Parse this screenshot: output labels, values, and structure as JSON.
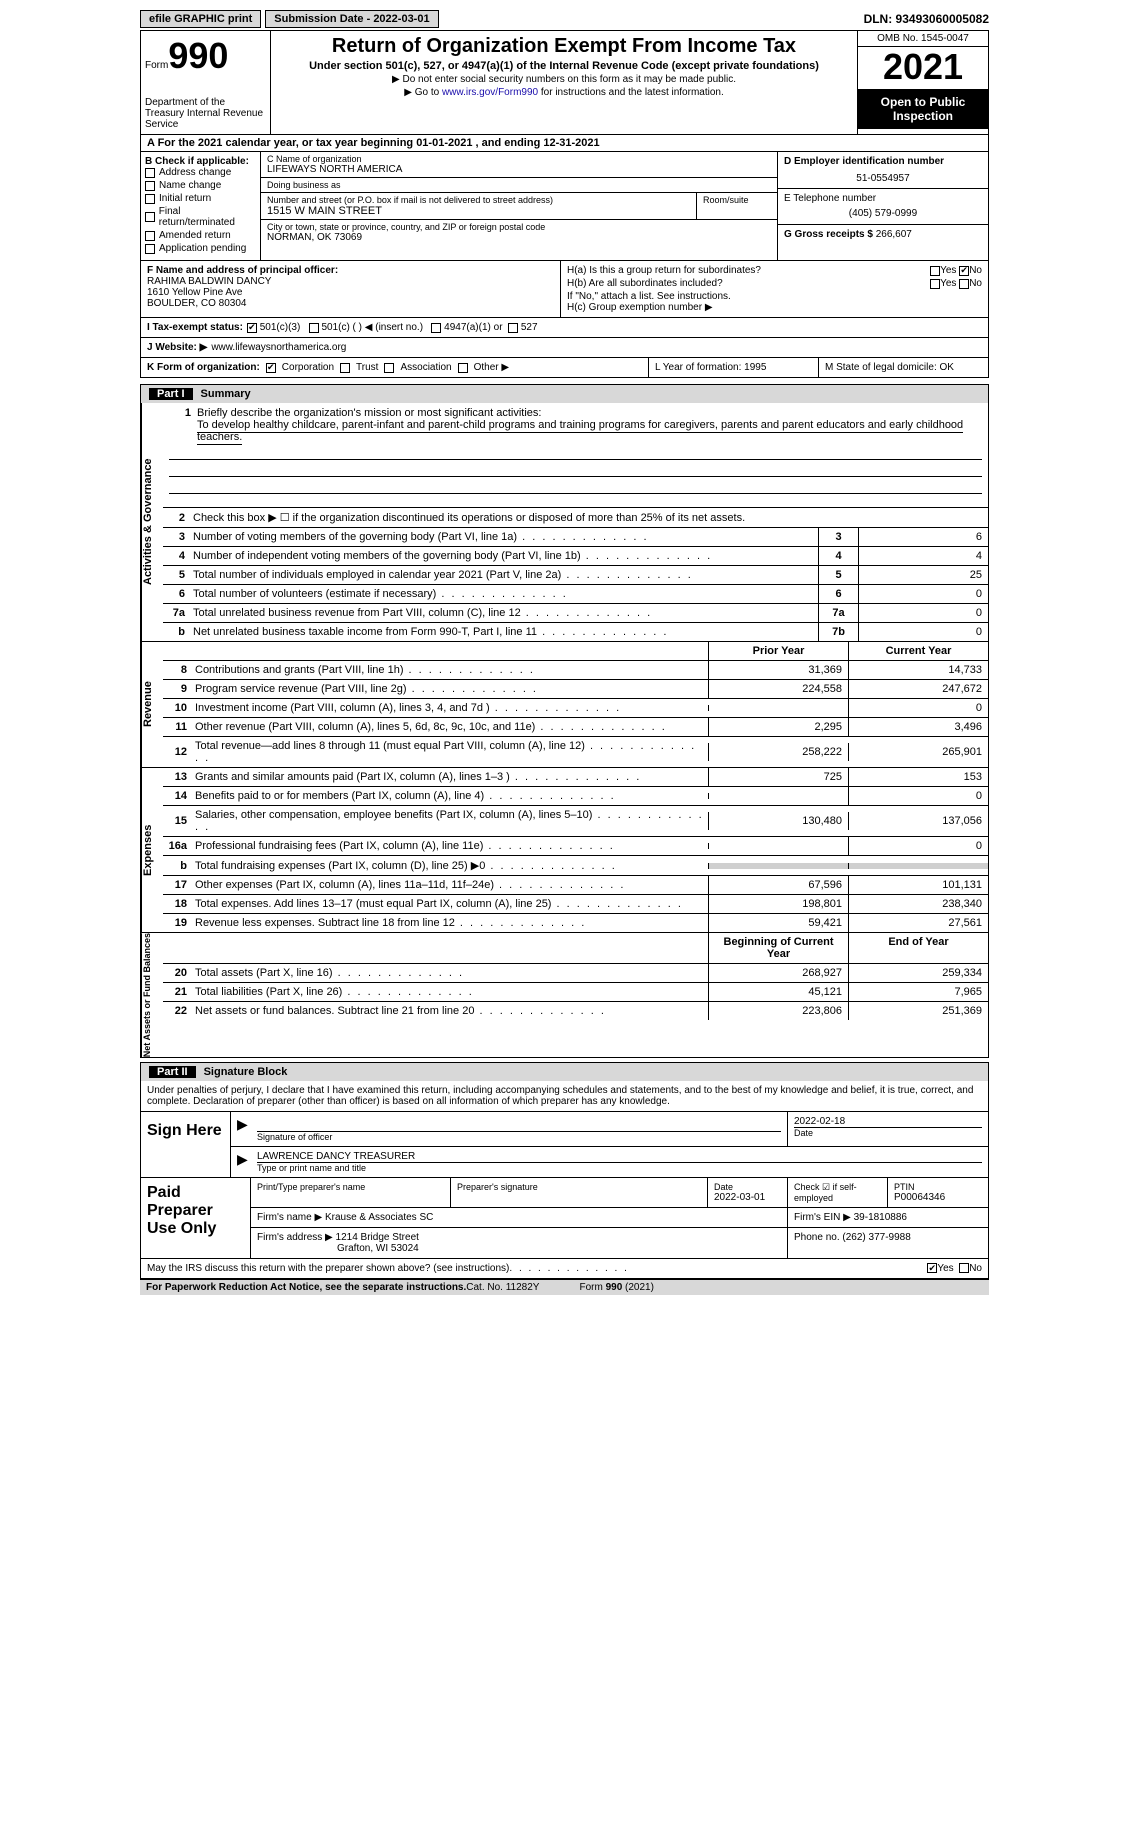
{
  "topbar": {
    "efile": "efile GRAPHIC print",
    "submission_label": "Submission Date - 2022-03-01",
    "dln": "DLN: 93493060005082"
  },
  "header": {
    "form_word": "Form",
    "form_number": "990",
    "dept": "Department of the Treasury\nInternal Revenue Service",
    "title": "Return of Organization Exempt From Income Tax",
    "subtitle": "Under section 501(c), 527, or 4947(a)(1) of the Internal Revenue Code (except private foundations)",
    "note1": "▶ Do not enter social security numbers on this form as it may be made public.",
    "note2_pre": "▶ Go to ",
    "note2_link": "www.irs.gov/Form990",
    "note2_post": " for instructions and the latest information.",
    "omb": "OMB No. 1545-0047",
    "year": "2021",
    "open": "Open to Public Inspection"
  },
  "row_a": "A For the 2021 calendar year, or tax year beginning 01-01-2021   , and ending 12-31-2021",
  "box_b": {
    "header": "B Check if applicable:",
    "items": [
      "Address change",
      "Name change",
      "Initial return",
      "Final return/terminated",
      "Amended return",
      "Application pending"
    ]
  },
  "box_c": {
    "label_name": "C Name of organization",
    "org": "LIFEWAYS NORTH AMERICA",
    "dba_label": "Doing business as",
    "dba": "",
    "addr_label": "Number and street (or P.O. box if mail is not delivered to street address)",
    "addr": "1515 W MAIN STREET",
    "room_label": "Room/suite",
    "room": "",
    "city_label": "City or town, state or province, country, and ZIP or foreign postal code",
    "city": "NORMAN, OK  73069"
  },
  "box_d": {
    "ein_label": "D Employer identification number",
    "ein": "51-0554957",
    "phone_label": "E Telephone number",
    "phone": "(405) 579-0999",
    "gross_label": "G Gross receipts $",
    "gross": "266,607"
  },
  "box_f": {
    "label": "F Name and address of principal officer:",
    "name": "RAHIMA BALDWIN DANCY",
    "addr1": "1610 Yellow Pine Ave",
    "addr2": "BOULDER, CO  80304"
  },
  "box_h": {
    "ha_label": "H(a)  Is this a group return for subordinates?",
    "hb_label": "H(b)  Are all subordinates included?",
    "hb_note": "If \"No,\" attach a list. See instructions.",
    "hc_label": "H(c)  Group exemption number ▶"
  },
  "row_i": {
    "label": "I   Tax-exempt status:",
    "opts": [
      "501(c)(3)",
      "501(c) (  ) ◀ (insert no.)",
      "4947(a)(1) or",
      "527"
    ]
  },
  "row_j": {
    "label": "J   Website: ▶",
    "url": "www.lifewaysnorthamerica.org"
  },
  "row_k": {
    "k_label": "K Form of organization:",
    "k_opts": [
      "Corporation",
      "Trust",
      "Association",
      "Other ▶"
    ],
    "l": "L Year of formation: 1995",
    "m": "M State of legal domicile: OK"
  },
  "part1": {
    "part": "Part I",
    "title": "Summary",
    "line1_prompt": "Briefly describe the organization's mission or most significant activities:",
    "line1_text": "To develop healthy childcare, parent-infant and parent-child programs and training programs for caregivers, parents and parent educators and early childhood teachers.",
    "line2": "Check this box ▶ ☐  if the organization discontinued its operations or disposed of more than 25% of its net assets.",
    "governance_label": "Activities & Governance",
    "revenue_label": "Revenue",
    "expenses_label": "Expenses",
    "netassets_label": "Net Assets or Fund Balances",
    "lines_gov": [
      {
        "n": "3",
        "desc": "Number of voting members of the governing body (Part VI, line 1a)",
        "box": "3",
        "val": "6"
      },
      {
        "n": "4",
        "desc": "Number of independent voting members of the governing body (Part VI, line 1b)",
        "box": "4",
        "val": "4"
      },
      {
        "n": "5",
        "desc": "Total number of individuals employed in calendar year 2021 (Part V, line 2a)",
        "box": "5",
        "val": "25"
      },
      {
        "n": "6",
        "desc": "Total number of volunteers (estimate if necessary)",
        "box": "6",
        "val": "0"
      },
      {
        "n": "7a",
        "desc": "Total unrelated business revenue from Part VIII, column (C), line 12",
        "box": "7a",
        "val": "0"
      },
      {
        "n": "b",
        "desc": "Net unrelated business taxable income from Form 990-T, Part I, line 11",
        "box": "7b",
        "val": "0"
      }
    ],
    "col_prior": "Prior Year",
    "col_curr": "Current Year",
    "lines_rev": [
      {
        "n": "8",
        "desc": "Contributions and grants (Part VIII, line 1h)",
        "prior": "31,369",
        "curr": "14,733"
      },
      {
        "n": "9",
        "desc": "Program service revenue (Part VIII, line 2g)",
        "prior": "224,558",
        "curr": "247,672"
      },
      {
        "n": "10",
        "desc": "Investment income (Part VIII, column (A), lines 3, 4, and 7d )",
        "prior": "",
        "curr": "0"
      },
      {
        "n": "11",
        "desc": "Other revenue (Part VIII, column (A), lines 5, 6d, 8c, 9c, 10c, and 11e)",
        "prior": "2,295",
        "curr": "3,496"
      },
      {
        "n": "12",
        "desc": "Total revenue—add lines 8 through 11 (must equal Part VIII, column (A), line 12)",
        "prior": "258,222",
        "curr": "265,901"
      }
    ],
    "lines_exp": [
      {
        "n": "13",
        "desc": "Grants and similar amounts paid (Part IX, column (A), lines 1–3 )",
        "prior": "725",
        "curr": "153"
      },
      {
        "n": "14",
        "desc": "Benefits paid to or for members (Part IX, column (A), line 4)",
        "prior": "",
        "curr": "0"
      },
      {
        "n": "15",
        "desc": "Salaries, other compensation, employee benefits (Part IX, column (A), lines 5–10)",
        "prior": "130,480",
        "curr": "137,056"
      },
      {
        "n": "16a",
        "desc": "Professional fundraising fees (Part IX, column (A), line 11e)",
        "prior": "",
        "curr": "0"
      },
      {
        "n": "b",
        "desc": "Total fundraising expenses (Part IX, column (D), line 25) ▶0",
        "prior": "grey",
        "curr": "grey"
      },
      {
        "n": "17",
        "desc": "Other expenses (Part IX, column (A), lines 11a–11d, 11f–24e)",
        "prior": "67,596",
        "curr": "101,131"
      },
      {
        "n": "18",
        "desc": "Total expenses. Add lines 13–17 (must equal Part IX, column (A), line 25)",
        "prior": "198,801",
        "curr": "238,340"
      },
      {
        "n": "19",
        "desc": "Revenue less expenses. Subtract line 18 from line 12",
        "prior": "59,421",
        "curr": "27,561"
      }
    ],
    "col_boy": "Beginning of Current Year",
    "col_eoy": "End of Year",
    "lines_net": [
      {
        "n": "20",
        "desc": "Total assets (Part X, line 16)",
        "prior": "268,927",
        "curr": "259,334"
      },
      {
        "n": "21",
        "desc": "Total liabilities (Part X, line 26)",
        "prior": "45,121",
        "curr": "7,965"
      },
      {
        "n": "22",
        "desc": "Net assets or fund balances. Subtract line 21 from line 20",
        "prior": "223,806",
        "curr": "251,369"
      }
    ]
  },
  "part2": {
    "part": "Part II",
    "title": "Signature Block",
    "decl": "Under penalties of perjury, I declare that I have examined this return, including accompanying schedules and statements, and to the best of my knowledge and belief, it is true, correct, and complete. Declaration of preparer (other than officer) is based on all information of which preparer has any knowledge.",
    "sign_here": "Sign Here",
    "sig_officer": "Signature of officer",
    "sig_date": "2022-02-18",
    "date_label": "Date",
    "printed_name": "LAWRENCE DANCY TREASURER",
    "printed_label": "Type or print name and title",
    "paid_label": "Paid Preparer Use Only",
    "prep_name_label": "Print/Type preparer's name",
    "prep_sig_label": "Preparer's signature",
    "prep_date_label": "Date",
    "prep_date": "2022-03-01",
    "check_if_label": "Check ☑ if self-employed",
    "ptin_label": "PTIN",
    "ptin": "P00064346",
    "firm_name_label": "Firm's name    ▶",
    "firm_name": "Krause & Associates SC",
    "firm_ein_label": "Firm's EIN ▶",
    "firm_ein": "39-1810886",
    "firm_addr_label": "Firm's address ▶",
    "firm_addr1": "1214 Bridge Street",
    "firm_addr2": "Grafton, WI  53024",
    "firm_phone_label": "Phone no.",
    "firm_phone": "(262) 377-9988"
  },
  "footer": {
    "discuss": "May the IRS discuss this return with the preparer shown above? (see instructions)",
    "yes": "Yes",
    "no": "No",
    "paperwork": "For Paperwork Reduction Act Notice, see the separate instructions.",
    "cat": "Cat. No. 11282Y",
    "formref": "Form 990 (2021)"
  }
}
